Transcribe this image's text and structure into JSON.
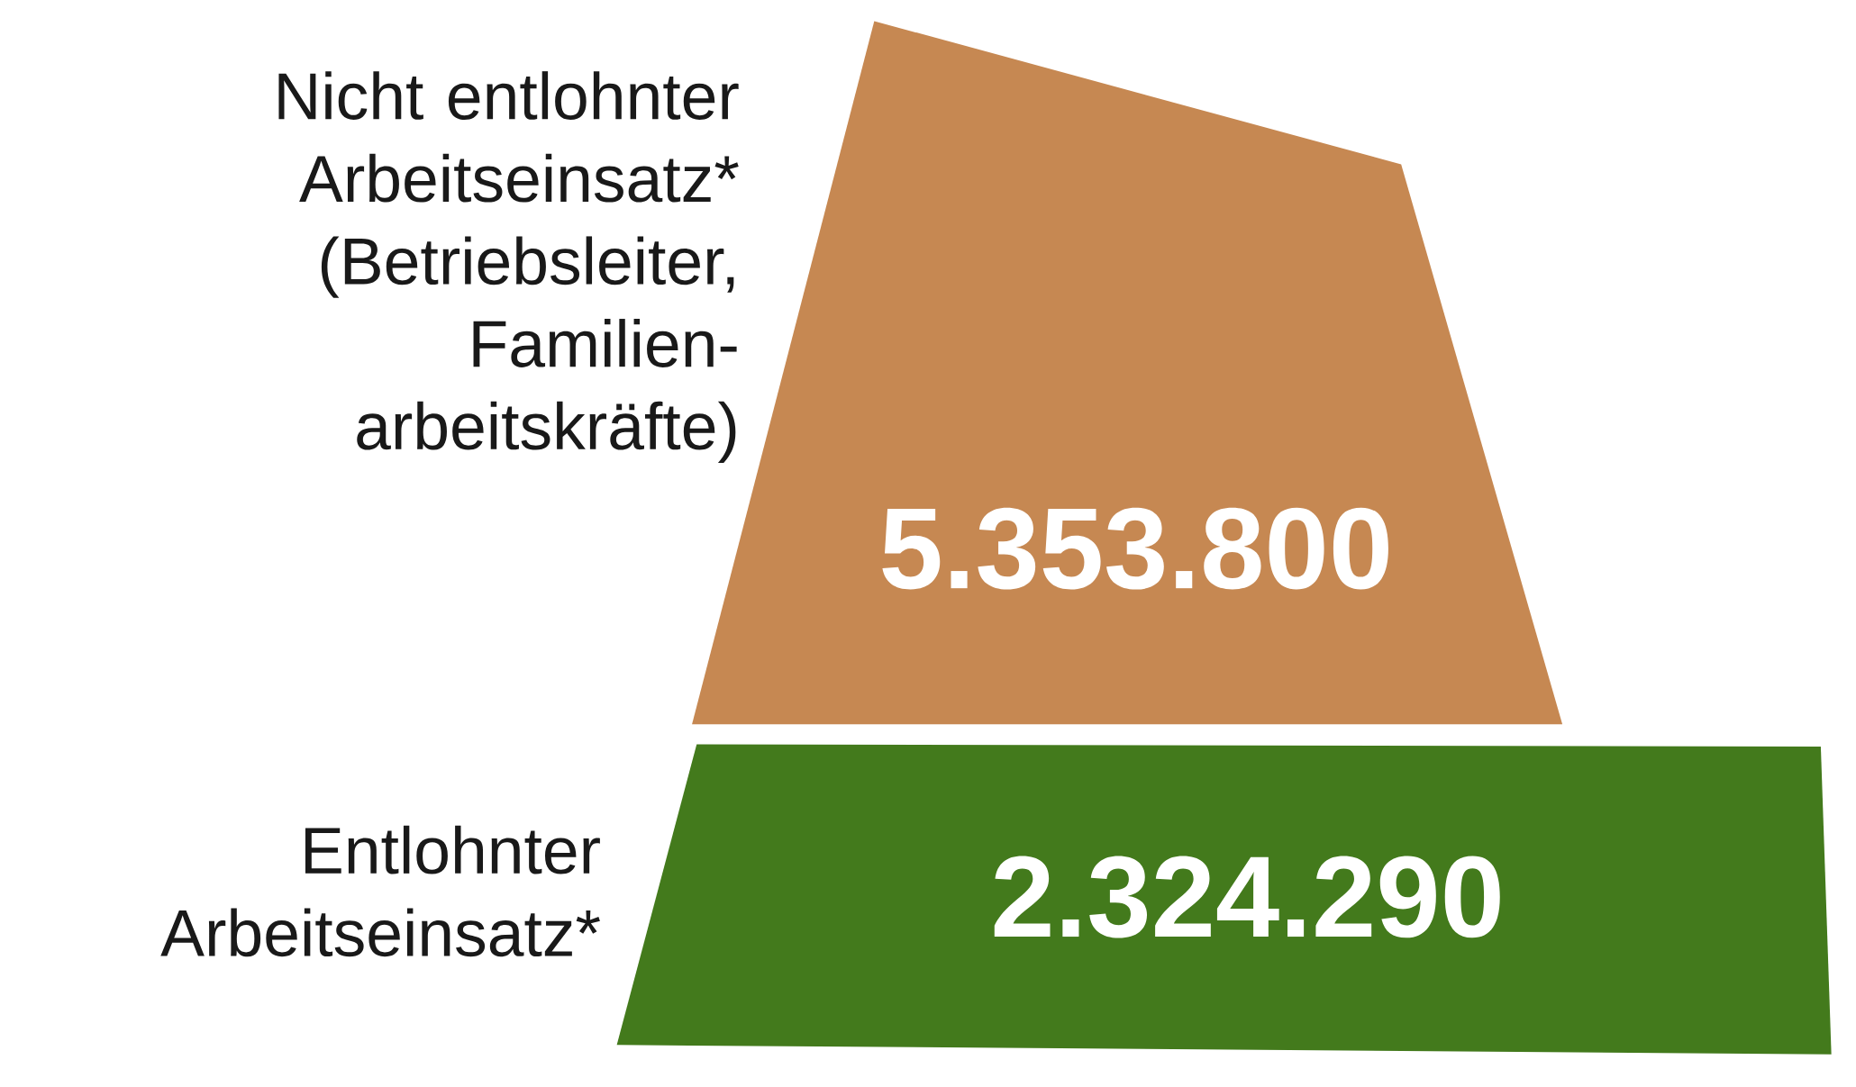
{
  "chart_data": {
    "type": "other",
    "categories": [
      "Nicht entlohnter Arbeitseinsatz* (Betriebsleiter, Familien-arbeitskräfte)",
      "Entlohnter Arbeitseinsatz*"
    ],
    "values": [
      5353800,
      2324290
    ],
    "value_labels": [
      "5.353.800",
      "2.324.290"
    ],
    "colors": [
      "#c68852",
      "#437a1c"
    ]
  }
}
